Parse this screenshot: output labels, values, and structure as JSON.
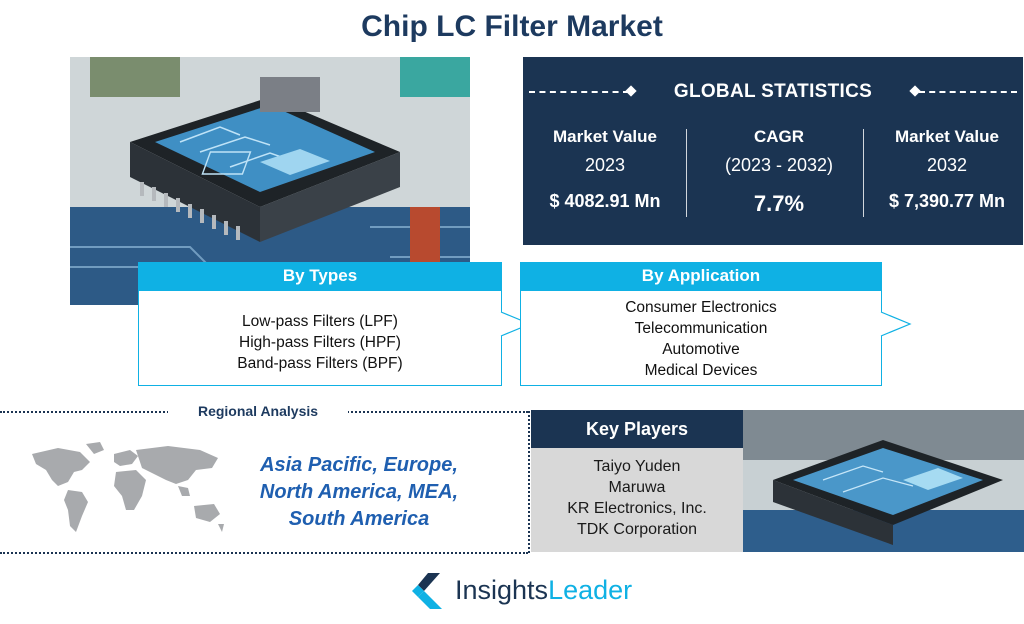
{
  "title": "Chip LC Filter Market",
  "global_statistics": {
    "heading": "GLOBAL STATISTICS",
    "market_value_2023": {
      "label": "Market Value",
      "year": "2023",
      "value": "$ 4082.91 Mn"
    },
    "cagr": {
      "label": "CAGR",
      "period": "(2023 - 2032)",
      "value": "7.7%"
    },
    "market_value_2032": {
      "label": "Market Value",
      "year": "2032",
      "value": "$ 7,390.77 Mn"
    }
  },
  "by_types": {
    "heading": "By Types",
    "items": [
      "Low-pass Filters (LPF)",
      "High-pass Filters (HPF)",
      "Band-pass Filters (BPF)"
    ]
  },
  "by_application": {
    "heading": "By Application",
    "items": [
      "Consumer Electronics",
      "Telecommunication",
      "Automotive",
      "Medical Devices"
    ]
  },
  "regional_analysis": {
    "heading": "Regional Analysis",
    "lines": [
      "Asia Pacific, Europe,",
      "North America, MEA,",
      "South America"
    ]
  },
  "key_players": {
    "heading": "Key Players",
    "items": [
      "Taiyo Yuden",
      "Maruwa",
      "KR Electronics, Inc.",
      "TDK Corporation"
    ]
  },
  "logo": {
    "word1": "Insights",
    "word2": "Leader"
  },
  "colors": {
    "navy": "#1b3452",
    "cyan": "#0fb1e4",
    "region_text": "#1f5fb0",
    "gray_panel": "#d8d8d8"
  }
}
